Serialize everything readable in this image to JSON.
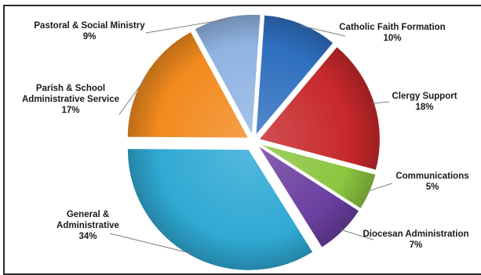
{
  "chart_data": {
    "type": "pie",
    "title": "",
    "legend": "none",
    "slices": [
      {
        "label": "Catholic Faith Formation",
        "pct_label": "10%",
        "value": 10,
        "color": "#2f6fbf"
      },
      {
        "label": "Clergy Support",
        "pct_label": "18%",
        "value": 18,
        "color": "#c7282c"
      },
      {
        "label": "Communications",
        "pct_label": "5%",
        "value": 5,
        "color": "#8cc63f"
      },
      {
        "label": "Diocesan Administration",
        "pct_label": "7%",
        "value": 7,
        "color": "#6b3fa0"
      },
      {
        "label": "General & Administrative",
        "pct_label": "34%",
        "value": 34,
        "color": "#2fa9d4"
      },
      {
        "label": "Parish & School Administrative Service",
        "pct_label": "17%",
        "value": 17,
        "color": "#f28a1e"
      },
      {
        "label": "Pastoral & Social Ministry",
        "pct_label": "9%",
        "value": 9,
        "color": "#8fb4e3"
      }
    ]
  }
}
